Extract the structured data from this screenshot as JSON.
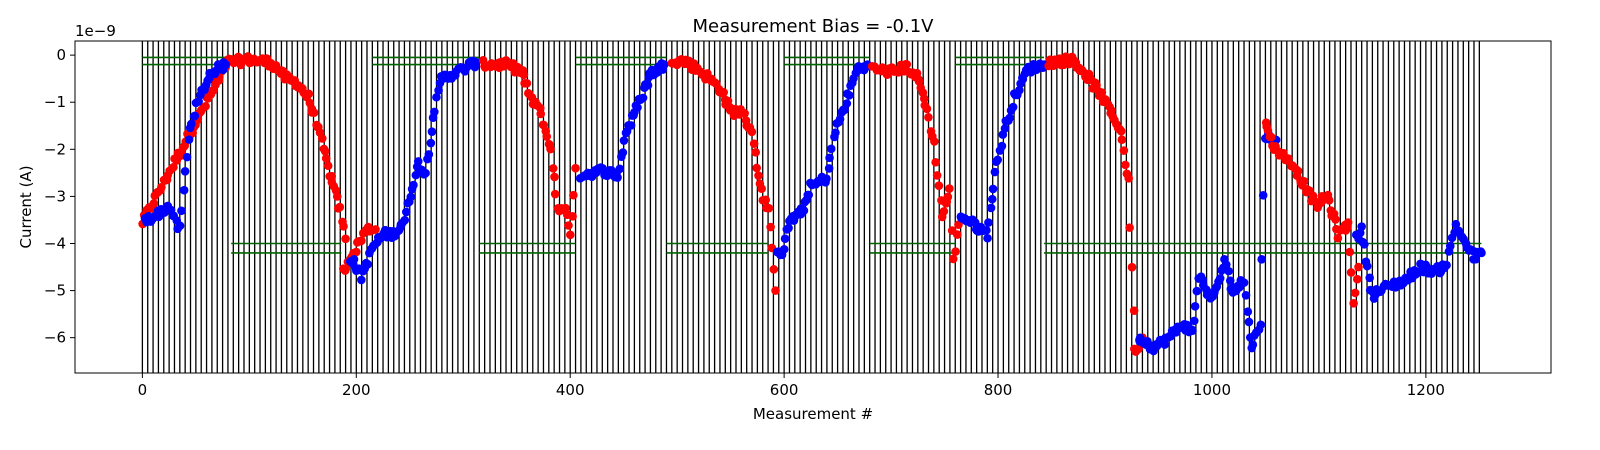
{
  "chart_data": {
    "type": "scatter",
    "title": "Measurement Bias = -0.1V",
    "xlabel": "Measurement #",
    "ylabel": "Current (A)",
    "y_offset_text": "1e−9",
    "xlim": [
      -63,
      1317
    ],
    "ylim": [
      -6.75,
      0.3
    ],
    "x_ticks": [
      0,
      200,
      400,
      600,
      800,
      1000,
      1200
    ],
    "y_ticks": [
      0,
      -1,
      -2,
      -3,
      -4,
      -5,
      -6
    ],
    "y_tick_labels": [
      "0",
      "−1",
      "−2",
      "−3",
      "−4",
      "−5",
      "−6"
    ],
    "grid": false,
    "vertical_lines": {
      "color": "#000000",
      "start": 0,
      "end": 1252,
      "spacing": 5
    },
    "reference_bands": {
      "color": "#006400",
      "levels": [
        {
          "y": [
            -0.05,
            -0.2
          ],
          "spans": [
            [
              0,
              83
            ],
            [
              215,
              315
            ],
            [
              405,
              490
            ],
            [
              600,
              680
            ],
            [
              760,
              843
            ]
          ]
        },
        {
          "y": [
            -4.0,
            -4.2
          ],
          "spans": [
            [
              83,
              186
            ],
            [
              315,
              405
            ],
            [
              490,
              585
            ],
            [
              680,
              760
            ],
            [
              843,
              1252
            ]
          ]
        }
      ]
    },
    "series": [
      {
        "color": "#ff0000",
        "keypoints": [
          [
            0,
            -3.55
          ],
          [
            80,
            -0.15
          ],
          [
            100,
            -0.1
          ],
          [
            120,
            -0.15
          ],
          [
            135,
            -0.5
          ],
          [
            145,
            -0.6
          ],
          [
            155,
            -0.9
          ],
          [
            165,
            -1.6
          ],
          [
            175,
            -2.5
          ],
          [
            185,
            -3.3
          ],
          [
            190,
            -3.9
          ]
        ]
      },
      {
        "color": "#0000ff",
        "keypoints": [
          [
            2,
            -3.5
          ],
          [
            10,
            -3.45
          ],
          [
            25,
            -3.2
          ],
          [
            30,
            -3.5
          ],
          [
            35,
            -3.7
          ],
          [
            40,
            -2.5
          ],
          [
            45,
            -1.5
          ],
          [
            55,
            -0.8
          ],
          [
            65,
            -0.35
          ],
          [
            78,
            -0.2
          ]
        ]
      },
      {
        "color": "#ff0000",
        "keypoints": [
          [
            188,
            -4.6
          ],
          [
            192,
            -4.4
          ],
          [
            210,
            -3.7
          ],
          [
            218,
            -3.7
          ]
        ]
      },
      {
        "color": "#0000ff",
        "keypoints": [
          [
            195,
            -4.3
          ],
          [
            205,
            -4.7
          ],
          [
            215,
            -4.1
          ],
          [
            225,
            -3.8
          ],
          [
            235,
            -3.8
          ],
          [
            245,
            -3.5
          ],
          [
            252,
            -2.8
          ],
          [
            258,
            -2.3
          ],
          [
            265,
            -2.5
          ],
          [
            272,
            -1.3
          ],
          [
            280,
            -0.5
          ],
          [
            295,
            -0.35
          ],
          [
            312,
            -0.15
          ]
        ]
      },
      {
        "color": "#ff0000",
        "keypoints": [
          [
            318,
            -0.2
          ],
          [
            340,
            -0.2
          ],
          [
            355,
            -0.35
          ],
          [
            362,
            -0.9
          ],
          [
            370,
            -1.1
          ],
          [
            377,
            -1.6
          ],
          [
            382,
            -2.0
          ],
          [
            388,
            -3.3
          ],
          [
            395,
            -3.2
          ],
          [
            400,
            -3.9
          ],
          [
            405,
            -2.4
          ]
        ]
      },
      {
        "color": "#0000ff",
        "keypoints": [
          [
            410,
            -2.55
          ],
          [
            430,
            -2.45
          ],
          [
            445,
            -2.55
          ],
          [
            452,
            -1.65
          ],
          [
            465,
            -1.0
          ],
          [
            475,
            -0.4
          ],
          [
            488,
            -0.2
          ]
        ]
      },
      {
        "color": "#ff0000",
        "keypoints": [
          [
            495,
            -0.1
          ],
          [
            510,
            -0.15
          ],
          [
            525,
            -0.4
          ],
          [
            540,
            -0.7
          ],
          [
            550,
            -1.2
          ],
          [
            560,
            -1.2
          ],
          [
            570,
            -1.6
          ],
          [
            578,
            -2.8
          ],
          [
            585,
            -3.3
          ],
          [
            590,
            -4.6
          ],
          [
            592,
            -5.0
          ]
        ]
      },
      {
        "color": "#0000ff",
        "keypoints": [
          [
            593,
            -4.1
          ],
          [
            598,
            -4.2
          ],
          [
            605,
            -3.5
          ],
          [
            615,
            -3.4
          ],
          [
            625,
            -2.8
          ],
          [
            640,
            -2.6
          ],
          [
            648,
            -1.6
          ],
          [
            658,
            -1.0
          ],
          [
            668,
            -0.3
          ],
          [
            678,
            -0.2
          ]
        ]
      },
      {
        "color": "#ff0000",
        "keypoints": [
          [
            683,
            -0.3
          ],
          [
            700,
            -0.35
          ],
          [
            715,
            -0.25
          ],
          [
            725,
            -0.5
          ],
          [
            732,
            -1.0
          ],
          [
            740,
            -1.9
          ],
          [
            748,
            -3.4
          ],
          [
            755,
            -2.9
          ],
          [
            758,
            -4.4
          ],
          [
            763,
            -3.6
          ]
        ]
      },
      {
        "color": "#0000ff",
        "keypoints": [
          [
            765,
            -3.4
          ],
          [
            778,
            -3.6
          ],
          [
            790,
            -3.8
          ],
          [
            797,
            -2.5
          ],
          [
            805,
            -1.7
          ],
          [
            815,
            -0.9
          ],
          [
            828,
            -0.3
          ],
          [
            843,
            -0.2
          ]
        ]
      },
      {
        "color": "#ff0000",
        "keypoints": [
          [
            848,
            -0.15
          ],
          [
            870,
            -0.1
          ],
          [
            880,
            -0.35
          ],
          [
            895,
            -0.8
          ],
          [
            905,
            -1.2
          ],
          [
            915,
            -1.6
          ],
          [
            922,
            -2.7
          ],
          [
            928,
            -6.3
          ],
          [
            935,
            -6.0
          ]
        ]
      },
      {
        "color": "#0000ff",
        "keypoints": [
          [
            932,
            -6.0
          ],
          [
            945,
            -6.2
          ],
          [
            960,
            -6.0
          ],
          [
            972,
            -5.7
          ],
          [
            982,
            -5.9
          ],
          [
            988,
            -4.7
          ],
          [
            1000,
            -5.2
          ],
          [
            1012,
            -4.4
          ],
          [
            1020,
            -5.0
          ],
          [
            1030,
            -4.8
          ],
          [
            1037,
            -6.2
          ],
          [
            1045,
            -5.7
          ],
          [
            1050,
            -1.7
          ],
          [
            1060,
            -1.8
          ]
        ]
      },
      {
        "color": "#ff0000",
        "keypoints": [
          [
            1050,
            -1.5
          ],
          [
            1060,
            -2.0
          ],
          [
            1075,
            -2.3
          ],
          [
            1085,
            -2.7
          ],
          [
            1097,
            -3.2
          ],
          [
            1108,
            -3.0
          ],
          [
            1118,
            -3.8
          ],
          [
            1128,
            -3.6
          ],
          [
            1132,
            -5.2
          ],
          [
            1137,
            -4.5
          ]
        ]
      },
      {
        "color": "#0000ff",
        "keypoints": [
          [
            1135,
            -3.9
          ],
          [
            1140,
            -3.7
          ],
          [
            1150,
            -5.1
          ],
          [
            1165,
            -4.9
          ],
          [
            1180,
            -4.8
          ],
          [
            1195,
            -4.5
          ],
          [
            1210,
            -4.6
          ],
          [
            1220,
            -4.4
          ],
          [
            1228,
            -3.6
          ],
          [
            1233,
            -3.8
          ],
          [
            1245,
            -4.3
          ],
          [
            1252,
            -4.2
          ]
        ]
      }
    ]
  }
}
